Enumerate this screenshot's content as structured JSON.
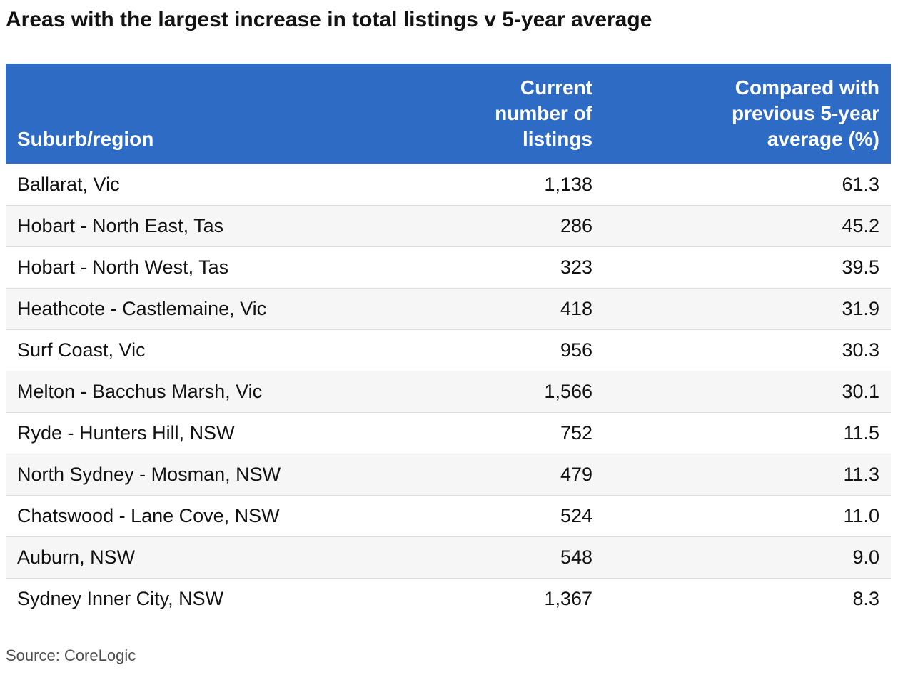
{
  "title": "Areas with the largest increase in total listings v 5-year average",
  "source": "Source: CoreLogic",
  "colors": {
    "header_background": "#2d6bc4",
    "header_text": "#ffffff",
    "stripe_background": "#f6f6f6"
  },
  "chart_data": {
    "type": "table",
    "title": "Areas with the largest increase in total listings v 5-year average",
    "columns": [
      "Suburb/region",
      "Current number of listings",
      "Compared with previous 5-year average (%)"
    ],
    "rows": [
      [
        "Ballarat, Vic",
        "1,138",
        "61.3"
      ],
      [
        "Hobart - North East, Tas",
        "286",
        "45.2"
      ],
      [
        "Hobart - North West, Tas",
        "323",
        "39.5"
      ],
      [
        "Heathcote - Castlemaine, Vic",
        "418",
        "31.9"
      ],
      [
        "Surf Coast, Vic",
        "956",
        "30.3"
      ],
      [
        "Melton - Bacchus Marsh, Vic",
        "1,566",
        "30.1"
      ],
      [
        "Ryde - Hunters Hill, NSW",
        "752",
        "11.5"
      ],
      [
        "North Sydney - Mosman, NSW",
        "479",
        "11.3"
      ],
      [
        "Chatswood - Lane Cove, NSW",
        "524",
        "11.0"
      ],
      [
        "Auburn, NSW",
        "548",
        "9.0"
      ],
      [
        "Sydney Inner City, NSW",
        "1,367",
        "8.3"
      ]
    ]
  }
}
